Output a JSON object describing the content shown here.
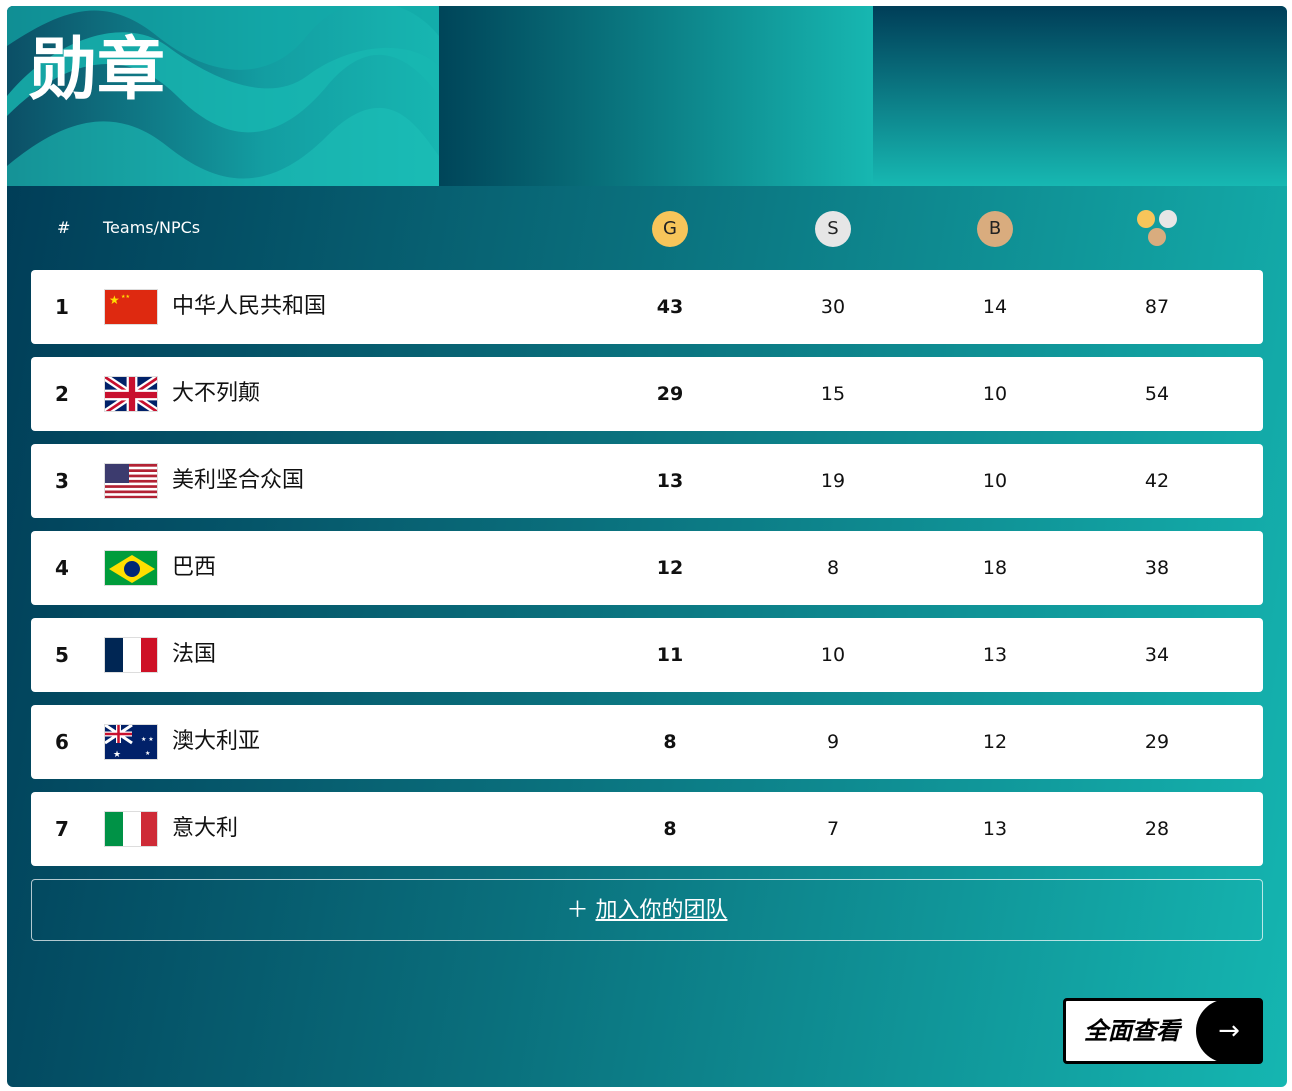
{
  "title": "勋章",
  "table": {
    "rank_header": "#",
    "team_header": "Teams/NPCs",
    "gold": "G",
    "silver": "S",
    "bronze": "B",
    "total_icon": "total-medals-icon"
  },
  "colors": {
    "gold": "#f7c55a",
    "silver": "#e6e6e6",
    "bronze": "#d9ac7e"
  },
  "rows": [
    {
      "rank": "1",
      "flag": "china",
      "name": "中华人民共和国",
      "g": "43",
      "s": "30",
      "b": "14",
      "t": "87"
    },
    {
      "rank": "2",
      "flag": "uk",
      "name": "大不列颠",
      "g": "29",
      "s": "15",
      "b": "10",
      "t": "54"
    },
    {
      "rank": "3",
      "flag": "usa",
      "name": "美利坚合众国",
      "g": "13",
      "s": "19",
      "b": "10",
      "t": "42"
    },
    {
      "rank": "4",
      "flag": "brazil",
      "name": "巴西",
      "g": "12",
      "s": "8",
      "b": "18",
      "t": "38"
    },
    {
      "rank": "5",
      "flag": "france",
      "name": "法国",
      "g": "11",
      "s": "10",
      "b": "13",
      "t": "34"
    },
    {
      "rank": "6",
      "flag": "australia",
      "name": "澳大利亚",
      "g": "8",
      "s": "9",
      "b": "12",
      "t": "29"
    },
    {
      "rank": "7",
      "flag": "italy",
      "name": "意大利",
      "g": "8",
      "s": "7",
      "b": "13",
      "t": "28"
    }
  ],
  "join": {
    "icon": "plus-icon",
    "label": "加入你的团队"
  },
  "view_all": {
    "label": "全面查看",
    "icon": "arrow-right-icon"
  }
}
